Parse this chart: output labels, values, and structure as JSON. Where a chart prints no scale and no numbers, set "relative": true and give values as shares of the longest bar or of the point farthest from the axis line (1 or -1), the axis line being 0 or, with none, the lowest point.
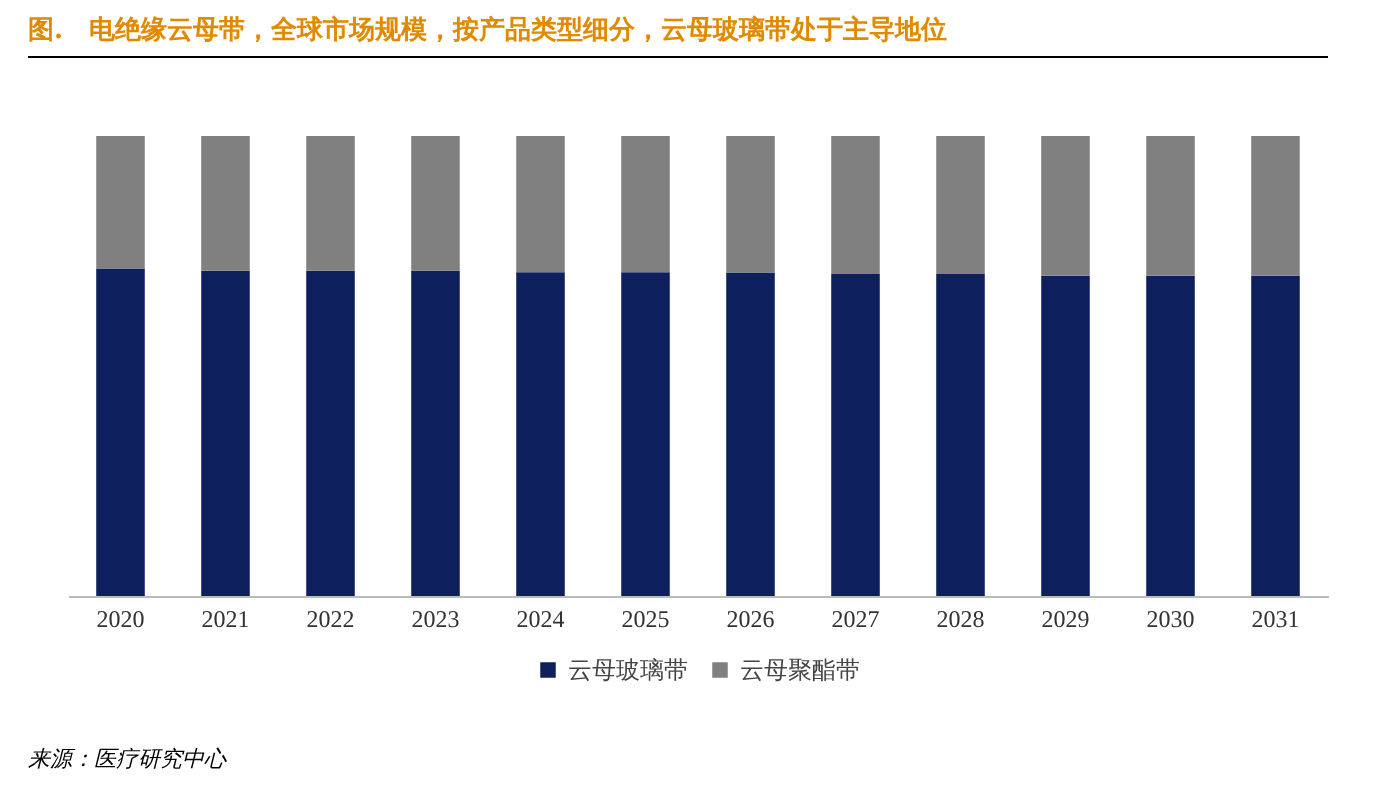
{
  "chart_data": {
    "type": "bar",
    "title": "图.　电绝缘云母带，全球市场规模，按产品类型细分，云母玻璃带处于主导地位",
    "categories": [
      "2020",
      "2021",
      "2022",
      "2023",
      "2024",
      "2025",
      "2026",
      "2027",
      "2028",
      "2029",
      "2030",
      "2031"
    ],
    "series": [
      {
        "name": "云母玻璃带",
        "color": "#0d1f5c",
        "values": [
          0.712,
          0.707,
          0.707,
          0.707,
          0.704,
          0.704,
          0.703,
          0.7,
          0.7,
          0.696,
          0.696,
          0.696
        ]
      },
      {
        "name": "云母聚酯带",
        "color": "#808080",
        "values": [
          0.288,
          0.293,
          0.293,
          0.293,
          0.296,
          0.296,
          0.297,
          0.3,
          0.3,
          0.304,
          0.304,
          0.304
        ]
      }
    ],
    "stacked": true,
    "relative": true,
    "legend": "bottom",
    "annotations": [
      "来源：医疗研究中心"
    ]
  }
}
